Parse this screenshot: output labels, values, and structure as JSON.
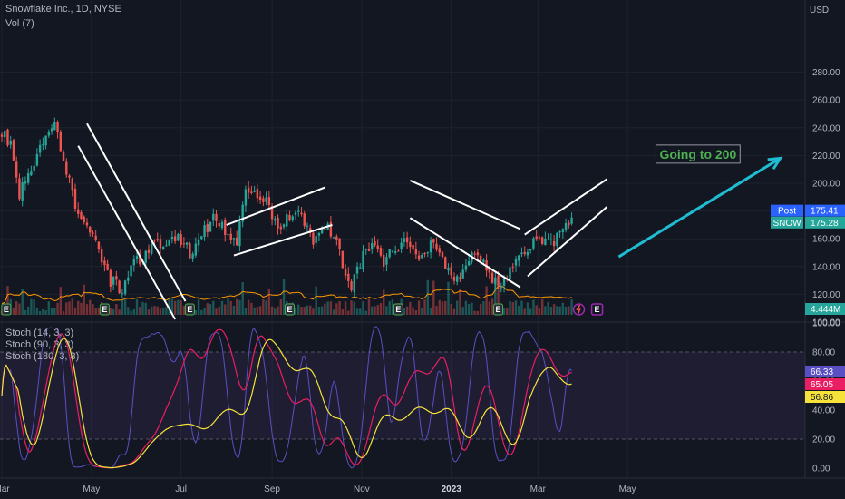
{
  "header": {
    "symbol_line": "Snowflake Inc., 1D, NYSE",
    "volume_label": "Vol (7)"
  },
  "stoch_legend": [
    "Stoch (14, 3, 3)",
    "Stoch (90, 3, 3)",
    "Stoch (180, 3, 3)"
  ],
  "colors": {
    "background": "#131722",
    "candle_up": "#26a69a",
    "candle_down": "#ef5350",
    "channel": "#ffffff",
    "arrow": "#1fbcd2",
    "annotation": "#4caf50",
    "stoch_fast": "#5b4fc4",
    "stoch_mid": "#e91e63",
    "stoch_slow": "#f5e33b",
    "volume_ma": "#ff9800"
  },
  "chart_data": {
    "type": "candlestick",
    "currency_label": "USD",
    "price_axis": {
      "min": 100,
      "max": 280,
      "ticks": [
        "280.00",
        "260.00",
        "240.00",
        "220.00",
        "200.00",
        "180.00",
        "160.00",
        "140.00",
        "120.00",
        "100.00"
      ]
    },
    "x_axis": {
      "labels": [
        "Mar",
        "May",
        "Jul",
        "Sep",
        "Nov",
        "2023",
        "Mar",
        "May"
      ],
      "bold_label": "2023"
    },
    "price_path": {
      "days": [
        0,
        6,
        12,
        20,
        28,
        36,
        42,
        50,
        58,
        66,
        74,
        82,
        90,
        96,
        104,
        112,
        120,
        128,
        136,
        144,
        152,
        160,
        166,
        172,
        180,
        188,
        196,
        204,
        212,
        220,
        228,
        234,
        238,
        244,
        252,
        260,
        268,
        276,
        284,
        292,
        300,
        308,
        312,
        318,
        324,
        332,
        340,
        348,
        356,
        364,
        372,
        380,
        388
      ],
      "close": [
        238,
        228,
        192,
        212,
        232,
        242,
        218,
        186,
        170,
        152,
        130,
        123,
        141,
        148,
        158,
        156,
        163,
        150,
        162,
        176,
        166,
        158,
        198,
        194,
        186,
        170,
        176,
        178,
        156,
        170,
        160,
        132,
        124,
        142,
        160,
        144,
        152,
        160,
        148,
        156,
        144,
        126,
        132,
        146,
        150,
        134,
        126,
        140,
        150,
        162,
        156,
        162,
        173
      ]
    },
    "last_price": 175.28,
    "post_price": 175.41,
    "tags": {
      "post_label": "Post",
      "post_value": "175.41",
      "symbol_label": "SNOW",
      "symbol_value": "175.28",
      "volume_value": "4.444M"
    },
    "channels": [
      {
        "from": [
          58,
          243
        ],
        "to": [
          125,
          115
        ]
      },
      {
        "from": [
          52,
          227
        ],
        "to": [
          118,
          102
        ]
      },
      {
        "from": [
          153,
          170
        ],
        "to": [
          220,
          197
        ]
      },
      {
        "from": [
          158,
          148
        ],
        "to": [
          225,
          170
        ]
      },
      {
        "from": [
          278,
          202
        ],
        "to": [
          353,
          167
        ]
      },
      {
        "from": [
          278,
          175
        ],
        "to": [
          353,
          125
        ]
      },
      {
        "from": [
          356,
          163
        ],
        "to": [
          412,
          203
        ]
      },
      {
        "from": [
          358,
          133
        ],
        "to": [
          412,
          183
        ]
      }
    ],
    "arrow": {
      "from": [
        420,
        147
      ],
      "to": [
        530,
        218
      ]
    },
    "annotation": {
      "text": "Going to 200",
      "at": [
        474,
        221
      ]
    },
    "earnings_days": [
      3,
      70,
      128,
      196,
      270,
      338
    ],
    "earnings_label": "E",
    "stoch_panel": {
      "ticks": [
        "100.00",
        "80.00",
        "60.00",
        "40.00",
        "20.00",
        "0.00"
      ],
      "band": [
        20,
        80
      ],
      "last": {
        "stoch_14": "66.33",
        "stoch_90": "65.05",
        "stoch_180": "56.86"
      }
    }
  }
}
